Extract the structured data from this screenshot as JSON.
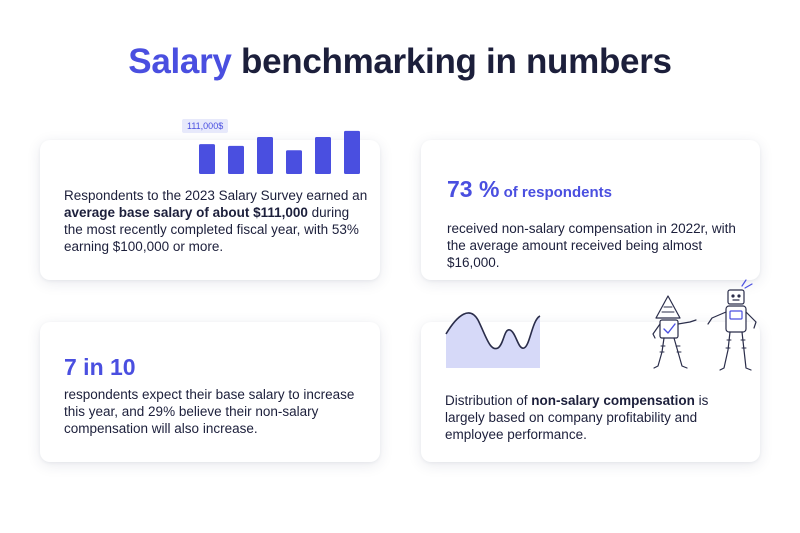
{
  "title": {
    "accent": "Salary",
    "rest": " benchmarking in numbers"
  },
  "cards": [
    {
      "text_before": "Respondents to the 2023 Salary Survey earned an ",
      "text_bold": "average base salary of about $111,000",
      "text_after": " during the most recently completed fiscal year, with 53% earning $100,000 or more."
    },
    {
      "stat_number": "73 %",
      "stat_suffix": " of respondents",
      "text": "received non-salary compensation in 2022r, with the average amount received being almost $16,000."
    },
    {
      "stat_number": "7 in 10",
      "text": "respondents expect their base salary to increase this year, and 29% believe their non-salary compensation will also increase."
    },
    {
      "text_before": "Distribution of ",
      "text_bold": "non-salary compensation",
      "text_after": " is largely based on company profitability and employee performance."
    }
  ],
  "bar_chart": {
    "label": "111,000$",
    "values": [
      0.68,
      0.64,
      0.84,
      0.54,
      0.84,
      0.98
    ],
    "color": "#4a4fe0"
  },
  "colors": {
    "accent": "#4a4fe0",
    "text": "#1c1f3b",
    "wave_fill": "#d6d9f8",
    "wave_line": "#2a2d4a"
  },
  "illustration": {
    "name": "two-robots-walking"
  }
}
